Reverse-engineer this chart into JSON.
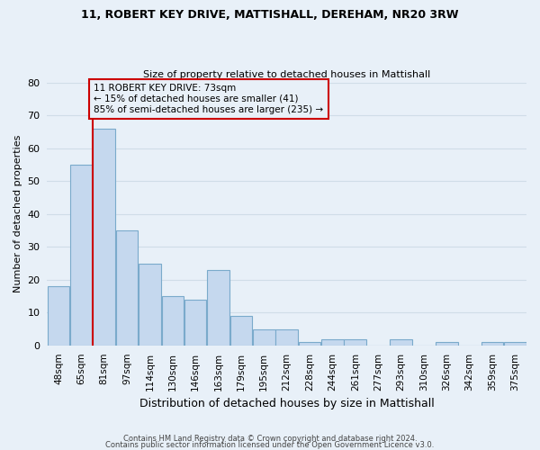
{
  "title1": "11, ROBERT KEY DRIVE, MATTISHALL, DEREHAM, NR20 3RW",
  "title2": "Size of property relative to detached houses in Mattishall",
  "xlabel": "Distribution of detached houses by size in Mattishall",
  "ylabel": "Number of detached properties",
  "categories": [
    "48sqm",
    "65sqm",
    "81sqm",
    "97sqm",
    "114sqm",
    "130sqm",
    "146sqm",
    "163sqm",
    "179sqm",
    "195sqm",
    "212sqm",
    "228sqm",
    "244sqm",
    "261sqm",
    "277sqm",
    "293sqm",
    "310sqm",
    "326sqm",
    "342sqm",
    "359sqm",
    "375sqm"
  ],
  "values": [
    18,
    55,
    66,
    35,
    25,
    15,
    14,
    23,
    9,
    5,
    5,
    1,
    2,
    2,
    0,
    2,
    0,
    1,
    0,
    1,
    1
  ],
  "bar_color": "#c5d8ee",
  "bar_edge_color": "#7aaacb",
  "grid_color": "#d0dde8",
  "bg_color": "#e8f0f8",
  "vline_color": "#cc0000",
  "annotation_title": "11 ROBERT KEY DRIVE: 73sqm",
  "annotation_line1": "← 15% of detached houses are smaller (41)",
  "annotation_line2": "85% of semi-detached houses are larger (235) →",
  "annotation_box_color": "#cc0000",
  "ylim": [
    0,
    80
  ],
  "yticks": [
    0,
    10,
    20,
    30,
    40,
    50,
    60,
    70,
    80
  ],
  "footer1": "Contains HM Land Registry data © Crown copyright and database right 2024.",
  "footer2": "Contains public sector information licensed under the Open Government Licence v3.0."
}
